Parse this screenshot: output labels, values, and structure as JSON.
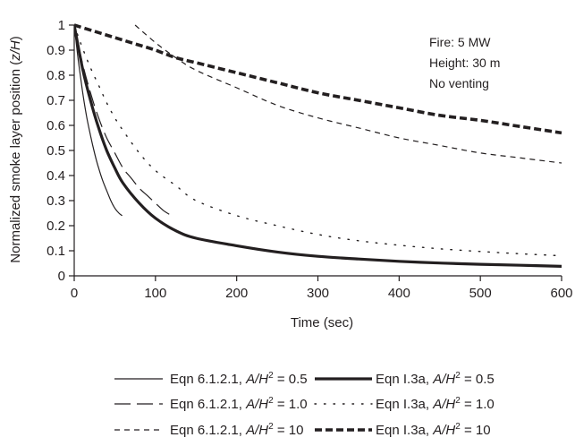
{
  "chart_data": {
    "type": "line",
    "xlabel": "Time (sec)",
    "ylabel": "Normalized smoke layer position (z/H)",
    "xlim": [
      0,
      600
    ],
    "ylim": [
      0,
      1
    ],
    "x_ticks": [
      "0",
      "100",
      "200",
      "300",
      "400",
      "500",
      "600"
    ],
    "y_ticks": [
      "0",
      "0.1",
      "0.2",
      "0.3",
      "0.4",
      "0.5",
      "0.6",
      "0.7",
      "0.8",
      "0.9",
      "1"
    ],
    "grid": false,
    "annotations": [
      "Fire: 5 MW",
      "Height: 30 m",
      "No venting"
    ],
    "legend_placement": "below",
    "series": [
      {
        "name": "Eqn 6.1.2.1, A/H² = 0.5",
        "legend": {
          "prefix": "Eqn 6.1.2.1, ",
          "italic": "A/H",
          "sup": "2",
          "suffix": " = 0.5"
        },
        "style": "thin-solid",
        "x": [
          0,
          5,
          10,
          15,
          20,
          25,
          30,
          35,
          40,
          45,
          50,
          55,
          59
        ],
        "y": [
          1.0,
          0.86,
          0.74,
          0.64,
          0.56,
          0.49,
          0.43,
          0.38,
          0.34,
          0.3,
          0.27,
          0.25,
          0.24
        ]
      },
      {
        "name": "Eqn 6.1.2.1, A/H² = 1.0",
        "legend": {
          "prefix": "Eqn 6.1.2.1, ",
          "italic": "A/H",
          "sup": "2",
          "suffix": " = 1.0"
        },
        "style": "long-dash",
        "x": [
          0,
          10,
          20,
          30,
          40,
          50,
          60,
          70,
          80,
          90,
          100,
          110,
          120
        ],
        "y": [
          1.0,
          0.85,
          0.73,
          0.63,
          0.55,
          0.49,
          0.43,
          0.39,
          0.35,
          0.32,
          0.29,
          0.26,
          0.24
        ]
      },
      {
        "name": "Eqn 6.1.2.1, A/H² = 10",
        "legend": {
          "prefix": "Eqn 6.1.2.1, ",
          "italic": "A/H",
          "sup": "2",
          "suffix": " = 10"
        },
        "style": "short-dash",
        "x": [
          75,
          100,
          125,
          150,
          200,
          250,
          300,
          350,
          400,
          450,
          500,
          550,
          600
        ],
        "y": [
          1.0,
          0.93,
          0.87,
          0.82,
          0.75,
          0.68,
          0.63,
          0.59,
          0.55,
          0.52,
          0.49,
          0.47,
          0.45
        ]
      },
      {
        "name": "Eqn I.3a, A/H² = 0.5",
        "legend": {
          "prefix": "Eqn I.3a, ",
          "italic": "A/H",
          "sup": "2",
          "suffix": " = 0.5"
        },
        "style": "thick-solid",
        "x": [
          0,
          10,
          20,
          30,
          40,
          50,
          60,
          80,
          100,
          125,
          150,
          200,
          250,
          300,
          350,
          400,
          450,
          500,
          550,
          600
        ],
        "y": [
          1.0,
          0.83,
          0.7,
          0.59,
          0.5,
          0.43,
          0.37,
          0.29,
          0.23,
          0.18,
          0.15,
          0.12,
          0.095,
          0.078,
          0.067,
          0.058,
          0.051,
          0.046,
          0.042,
          0.038
        ]
      },
      {
        "name": "Eqn I.3a, A/H² = 1.0",
        "legend": {
          "prefix": "Eqn I.3a, ",
          "italic": "A/H",
          "sup": "2",
          "suffix": " = 1.0"
        },
        "style": "dotted",
        "x": [
          0,
          10,
          20,
          30,
          40,
          50,
          60,
          80,
          100,
          125,
          150,
          200,
          250,
          300,
          350,
          400,
          450,
          500,
          550,
          600
        ],
        "y": [
          1.0,
          0.91,
          0.83,
          0.76,
          0.69,
          0.63,
          0.58,
          0.49,
          0.42,
          0.36,
          0.3,
          0.24,
          0.2,
          0.165,
          0.14,
          0.122,
          0.108,
          0.097,
          0.088,
          0.08
        ]
      },
      {
        "name": "Eqn I.3a, A/H² = 10",
        "legend": {
          "prefix": "Eqn I.3a, ",
          "italic": "A/H",
          "sup": "2",
          "suffix": " = 10"
        },
        "style": "thick-dash",
        "x": [
          0,
          25,
          50,
          75,
          100,
          125,
          150,
          200,
          250,
          300,
          350,
          400,
          450,
          500,
          550,
          600
        ],
        "y": [
          1.0,
          0.975,
          0.95,
          0.925,
          0.9,
          0.87,
          0.85,
          0.81,
          0.77,
          0.73,
          0.7,
          0.67,
          0.64,
          0.62,
          0.595,
          0.57
        ]
      }
    ]
  }
}
